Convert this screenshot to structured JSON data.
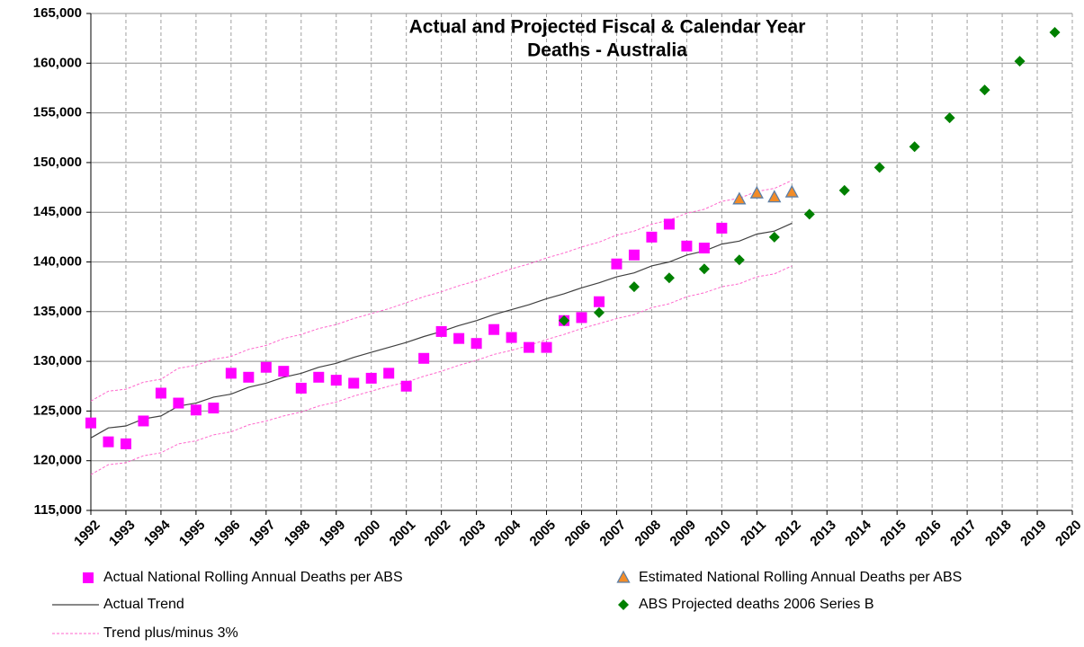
{
  "chart_data": {
    "type": "scatter",
    "title": [
      "Actual and Projected Fiscal & Calendar Year",
      "Deaths - Australia"
    ],
    "xlim": [
      1992,
      2020
    ],
    "xticks": [
      1992,
      1993,
      1994,
      1995,
      1996,
      1997,
      1998,
      1999,
      2000,
      2001,
      2002,
      2003,
      2004,
      2005,
      2006,
      2007,
      2008,
      2009,
      2010,
      2011,
      2012,
      2013,
      2014,
      2015,
      2016,
      2017,
      2018,
      2019,
      2020
    ],
    "ylim": [
      115000,
      165000
    ],
    "yticks": [
      {
        "value": 115000,
        "label": "115,000"
      },
      {
        "value": 120000,
        "label": "120,000"
      },
      {
        "value": 125000,
        "label": "125,000"
      },
      {
        "value": 130000,
        "label": "130,000"
      },
      {
        "value": 135000,
        "label": "135,000"
      },
      {
        "value": 140000,
        "label": "140,000"
      },
      {
        "value": 145000,
        "label": "145,000"
      },
      {
        "value": 150000,
        "label": "150,000"
      },
      {
        "value": 155000,
        "label": "155,000"
      },
      {
        "value": 160000,
        "label": "160,000"
      },
      {
        "value": 165000,
        "label": "165,000"
      }
    ],
    "grid": true,
    "series": [
      {
        "name": "Actual National Rolling Annual Deaths per ABS",
        "marker": "square",
        "color": "#ff00ff",
        "x": [
          1992,
          1992.5,
          1993,
          1993.5,
          1994,
          1994.5,
          1995,
          1995.5,
          1996,
          1996.5,
          1997,
          1997.5,
          1998,
          1998.5,
          1999,
          1999.5,
          2000,
          2000.5,
          2001,
          2001.5,
          2002,
          2002.5,
          2003,
          2003.5,
          2004,
          2004.5,
          2005,
          2005.5,
          2006,
          2006.5,
          2007,
          2007.5,
          2008,
          2008.5,
          2009,
          2009.5,
          2010
        ],
        "values": [
          123800,
          121900,
          121700,
          124000,
          126800,
          125800,
          125100,
          125300,
          128800,
          128400,
          129400,
          129000,
          127300,
          128400,
          128100,
          127800,
          128300,
          128800,
          127500,
          130300,
          133000,
          132300,
          131800,
          133200,
          132400,
          131400,
          131400,
          134100,
          134400,
          136000,
          139800,
          140700,
          142500,
          143800,
          141600,
          141400,
          143400
        ]
      },
      {
        "name": "Actual Trend",
        "marker": "line",
        "color": "#404040",
        "x": [
          1992,
          1992.5,
          1993,
          1993.5,
          1994,
          1994.5,
          1995,
          1995.5,
          1996,
          1996.5,
          1997,
          1997.5,
          1998,
          1998.5,
          1999,
          1999.5,
          2000,
          2000.5,
          2001,
          2001.5,
          2002,
          2002.5,
          2003,
          2003.5,
          2004,
          2004.5,
          2005,
          2005.5,
          2006,
          2006.5,
          2007,
          2007.5,
          2008,
          2008.5,
          2009,
          2009.5,
          2010,
          2010.5,
          2011,
          2011.5,
          2012
        ],
        "values": [
          122300,
          123300,
          123500,
          124200,
          124500,
          125500,
          125800,
          126400,
          126700,
          127400,
          127800,
          128400,
          128800,
          129400,
          129800,
          130400,
          130900,
          131400,
          131900,
          132500,
          133000,
          133600,
          134100,
          134700,
          135200,
          135700,
          136300,
          136800,
          137400,
          137900,
          138500,
          138900,
          139600,
          140000,
          140700,
          141100,
          141800,
          142100,
          142800,
          143100,
          143900
        ]
      },
      {
        "name": "Trend plus/minus 3%",
        "marker": "dashed-line",
        "color": "#ff66cc",
        "x": [
          1992,
          1992.5,
          1993,
          1993.5,
          1994,
          1994.5,
          1995,
          1995.5,
          1996,
          1996.5,
          1997,
          1997.5,
          1998,
          1998.5,
          1999,
          1999.5,
          2000,
          2000.5,
          2001,
          2001.5,
          2002,
          2002.5,
          2003,
          2003.5,
          2004,
          2004.5,
          2005,
          2005.5,
          2006,
          2006.5,
          2007,
          2007.5,
          2008,
          2008.5,
          2009,
          2009.5,
          2010,
          2010.5,
          2011,
          2011.5,
          2012
        ],
        "values": [
          126000,
          127000,
          127200,
          127900,
          128200,
          129300,
          129600,
          130200,
          130500,
          131200,
          131600,
          132300,
          132700,
          133300,
          133700,
          134300,
          134800,
          135300,
          135900,
          136500,
          137000,
          137600,
          138100,
          138700,
          139300,
          139800,
          140400,
          140900,
          141500,
          142000,
          142700,
          143100,
          143800,
          144200,
          144900,
          145300,
          146100,
          146400,
          147100,
          147400,
          148200
        ],
        "lower_values": [
          118600,
          119600,
          119800,
          120500,
          120800,
          121700,
          122000,
          122600,
          122900,
          123600,
          124000,
          124500,
          124900,
          125500,
          125900,
          126500,
          127000,
          127500,
          127900,
          128500,
          129000,
          129600,
          130100,
          130700,
          131100,
          131600,
          132200,
          132700,
          133300,
          133800,
          134300,
          134700,
          135400,
          135800,
          136500,
          136900,
          137500,
          137800,
          138500,
          138800,
          139600
        ]
      },
      {
        "name": "Estimated National Rolling Annual Deaths per ABS",
        "marker": "triangle",
        "color": "#f28c28",
        "edge_color": "#5b7fa8",
        "x": [
          2010.5,
          2011,
          2011.5,
          2012
        ],
        "values": [
          146300,
          146900,
          146500,
          147000
        ]
      },
      {
        "name": "ABS Projected deaths 2006 Series B",
        "marker": "diamond",
        "color": "#008000",
        "x": [
          2005.5,
          2006.5,
          2007.5,
          2008.5,
          2009.5,
          2010.5,
          2011.5,
          2012.5,
          2013.5,
          2014.5,
          2015.5,
          2016.5,
          2017.5,
          2018.5,
          2019.5
        ],
        "values": [
          134100,
          134900,
          137500,
          138400,
          139300,
          140200,
          142500,
          144800,
          147200,
          149500,
          151600,
          154500,
          157300,
          160200,
          163100
        ]
      }
    ]
  }
}
